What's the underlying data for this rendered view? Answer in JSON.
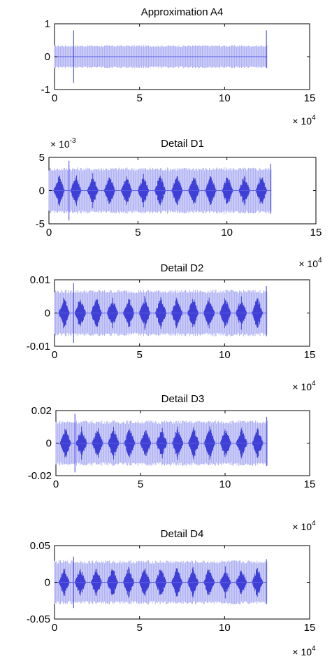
{
  "chart_data": [
    {
      "type": "line",
      "title": "Approximation A4",
      "x_tick_labels": [
        "0",
        "5",
        "10",
        "15"
      ],
      "x_multiplier": {
        "base": "× 10",
        "exponent": "4"
      },
      "y_tick_labels": [
        "1",
        "0",
        "-1"
      ],
      "y_multiplier": null,
      "xlim": [
        0,
        150000
      ],
      "ylim": [
        -1,
        1
      ],
      "signal": {
        "x_end": 125000,
        "envelope": 0.35,
        "spike_max": 0.8,
        "spike_min": -0.8,
        "color": "#5a5ce8"
      }
    },
    {
      "type": "line",
      "title": "Detail D1",
      "x_tick_labels": [
        "0",
        "5",
        "10",
        "15"
      ],
      "x_multiplier": {
        "base": "× 10",
        "exponent": "4"
      },
      "y_tick_labels": [
        "5",
        "0",
        "-5"
      ],
      "y_multiplier": {
        "base": "× 10",
        "exponent": "-3"
      },
      "xlim": [
        0,
        150000
      ],
      "ylim": [
        -0.005,
        0.005
      ],
      "signal": {
        "x_end": 125000,
        "envelope": 0.0035,
        "spike_max": 0.0045,
        "spike_min": -0.0045,
        "color": "#5a5ce8"
      }
    },
    {
      "type": "line",
      "title": "Detail D2",
      "x_tick_labels": [
        "0",
        "5",
        "10",
        "15"
      ],
      "x_multiplier": {
        "base": "× 10",
        "exponent": "4"
      },
      "y_tick_labels": [
        "0.01",
        "0",
        "-0.01"
      ],
      "y_multiplier": null,
      "xlim": [
        0,
        150000
      ],
      "ylim": [
        -0.01,
        0.01
      ],
      "signal": {
        "x_end": 125000,
        "envelope": 0.007,
        "spike_max": 0.009,
        "spike_min": -0.009,
        "color": "#5a5ce8"
      }
    },
    {
      "type": "line",
      "title": "Detail D3",
      "x_tick_labels": [
        "0",
        "5",
        "10",
        "15"
      ],
      "x_multiplier": {
        "base": "× 10",
        "exponent": "4"
      },
      "y_tick_labels": [
        "0.02",
        "0",
        "-0.02"
      ],
      "y_multiplier": null,
      "xlim": [
        0,
        150000
      ],
      "ylim": [
        -0.02,
        0.02
      ],
      "signal": {
        "x_end": 125000,
        "envelope": 0.014,
        "spike_max": 0.018,
        "spike_min": -0.018,
        "color": "#5a5ce8"
      }
    },
    {
      "type": "line",
      "title": "Detail D4",
      "x_tick_labels": [
        "0",
        "5",
        "10",
        "15"
      ],
      "x_multiplier": {
        "base": "× 10",
        "exponent": "4"
      },
      "y_tick_labels": [
        "0.05",
        "0",
        "-0.05"
      ],
      "y_multiplier": null,
      "xlim": [
        0,
        150000
      ],
      "ylim": [
        -0.05,
        0.05
      ],
      "signal": {
        "x_end": 125000,
        "envelope": 0.03,
        "spike_max": 0.035,
        "spike_min": -0.035,
        "color": "#5a5ce8"
      }
    }
  ]
}
